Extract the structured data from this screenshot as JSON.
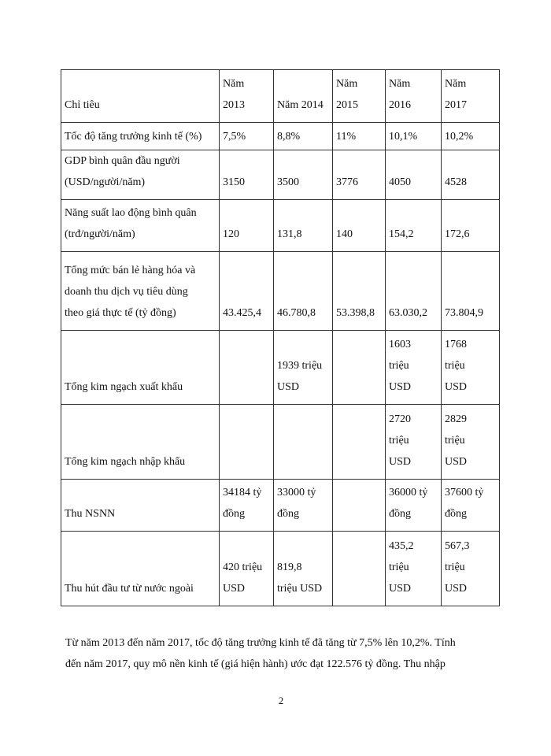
{
  "table": {
    "header": [
      "Chỉ tiêu",
      "Năm\n2013",
      "Năm 2014",
      "Năm\n2015",
      "Năm\n2016",
      "Năm\n2017"
    ],
    "rows": [
      [
        "Tốc độ tăng trưởng kinh tế (%)",
        "7,5%",
        "8,8%",
        "11%",
        "10,1%",
        "10,2%"
      ],
      [
        "GDP bình quân đầu người\n(USD/người/năm)",
        "3150",
        "3500",
        "3776",
        "4050",
        "4528"
      ],
      [
        "Năng suất lao động bình quân\n(trđ/người/năm)",
        "120",
        "131,8",
        "140",
        "154,2",
        "172,6"
      ],
      [
        "Tổng mức bán lẻ hàng hóa và\ndoanh thu dịch vụ tiêu dùng\ntheo giá thực tế (tỷ đồng)",
        "43.425,4",
        "46.780,8",
        "53.398,8",
        "63.030,2",
        "73.804,9"
      ],
      [
        "Tổng kim ngạch xuất khẩu",
        "",
        "1939 triệu\nUSD",
        "",
        "1603\ntriệu\nUSD",
        "1768\ntriệu\nUSD"
      ],
      [
        "Tổng kim ngạch nhập khẩu",
        "",
        "",
        "",
        "2720\ntriệu\nUSD",
        "2829\ntriệu\nUSD"
      ],
      [
        "Thu NSNN",
        "34184 tỷ\nđồng",
        "33000 tỷ\nđồng",
        "",
        "36000 tỷ\nđồng",
        "37600 tỷ\nđồng"
      ],
      [
        "Thu hút đầu tư từ nước ngoài",
        "420 triệu\nUSD",
        "819,8\ntriệu USD",
        "",
        "435,2\ntriệu\nUSD",
        "567,3\ntriệu\nUSD"
      ]
    ]
  },
  "paragraph": {
    "line1": "Từ năm 2013 đến năm 2017, tốc độ tăng trưởng kinh tế đã tăng từ 7,5% lên 10,2%. Tính",
    "line2": "đến năm 2017, quy mô nền kinh tế (giá hiện hành) ước đạt 122.576 tỷ đồng. Thu nhập"
  },
  "page_number": "2"
}
